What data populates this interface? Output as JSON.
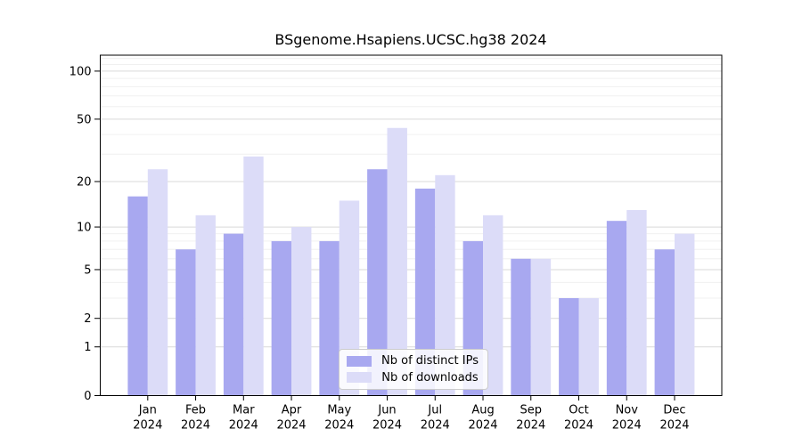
{
  "chart_data": {
    "type": "bar",
    "title": "BSgenome.Hsapiens.UCSC.hg38 2024",
    "categories": [
      "Jan",
      "Feb",
      "Mar",
      "Apr",
      "May",
      "Jun",
      "Jul",
      "Aug",
      "Sep",
      "Oct",
      "Nov",
      "Dec"
    ],
    "year": "2024",
    "series": [
      {
        "name": "Nb of distinct IPs",
        "color": "#a8a8f0",
        "values": [
          16,
          7,
          9,
          8,
          8,
          24,
          18,
          8,
          6,
          3,
          11,
          7
        ]
      },
      {
        "name": "Nb of downloads",
        "color": "#dcdcf8",
        "values": [
          24,
          12,
          29,
          10,
          15,
          44,
          22,
          12,
          6,
          3,
          13,
          9
        ]
      }
    ],
    "y_axis": {
      "scale": "log1p",
      "ticks": [
        0,
        1,
        2,
        5,
        10,
        20,
        50,
        100
      ],
      "minor_ticks": [
        3,
        4,
        6,
        7,
        8,
        9,
        30,
        40,
        60,
        70,
        80,
        90,
        110,
        120
      ]
    },
    "xlabel": "",
    "ylabel": "",
    "grid": true,
    "legend_position": "bottom-center",
    "colors": {
      "spine": "#000000",
      "major_grid": "#d9d9d9",
      "minor_grid": "#f0f0f0",
      "background": "#ffffff"
    }
  }
}
